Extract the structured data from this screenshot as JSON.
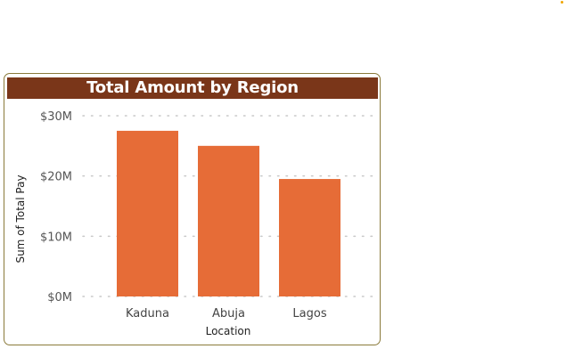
{
  "colors": {
    "bar": "#e66c37",
    "title_bg": "#7a3619",
    "border": "#8a7a3a",
    "grid": "#c8c8c8"
  },
  "chart_data": {
    "type": "bar",
    "title": "Total Amount by Region",
    "xlabel": "Location",
    "ylabel": "Sum of Total Pay",
    "categories": [
      "Kaduna",
      "Abuja",
      "Lagos"
    ],
    "values": [
      27.5,
      25.0,
      19.5
    ],
    "ylim": [
      0,
      30
    ],
    "yticks": [
      0,
      10,
      20,
      30
    ],
    "ytick_labels": [
      "$0M",
      "$10M",
      "$20M",
      "$30M"
    ],
    "grid": true,
    "legend": "none"
  }
}
